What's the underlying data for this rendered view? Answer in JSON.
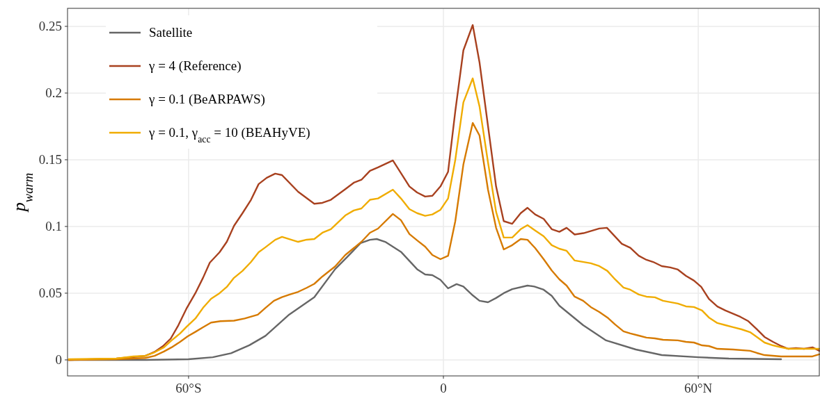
{
  "chart_data": {
    "type": "line",
    "ylabel": "p$_{warm}$",
    "xlim": [
      -88.5,
      88.5
    ],
    "ylim": [
      -0.012,
      0.2635
    ],
    "xticks": [
      {
        "value": -60,
        "label": "60°S"
      },
      0,
      {
        "value": 60,
        "label": "60°N"
      }
    ],
    "yticks": [
      0,
      0.05,
      0.1,
      0.15,
      0.2,
      0.25
    ],
    "grid": true,
    "legend": "top left",
    "line_style": "solid",
    "marker": "none",
    "series": [
      {
        "name": "Satellite",
        "color": "#666666",
        "x": [
          -88.2,
          -70,
          -60,
          -54.3,
          -50,
          -45.7,
          -41.9,
          -36.3,
          -30.4,
          -25.5,
          -22.7,
          -19.5,
          -17.3,
          -15.7,
          -13.7,
          -10,
          -6.2,
          -4.3,
          -2.6,
          -0.7,
          1.1,
          3.1,
          4.7,
          6.9,
          8.5,
          10.5,
          12.4,
          14.2,
          16.2,
          19.8,
          21.4,
          23.6,
          25.5,
          27.3,
          32.9,
          38.3,
          45.3,
          51.4,
          60,
          67.2,
          79.5
        ],
        "values": [
          0,
          0,
          0.0005,
          0.002,
          0.005,
          0.011,
          0.018,
          0.034,
          0.047,
          0.068,
          0.077,
          0.0875,
          0.09,
          0.0906,
          0.0885,
          0.081,
          0.068,
          0.064,
          0.0635,
          0.06,
          0.0536,
          0.0568,
          0.055,
          0.0484,
          0.0443,
          0.0432,
          0.0464,
          0.05,
          0.053,
          0.0557,
          0.055,
          0.0526,
          0.048,
          0.0406,
          0.026,
          0.0146,
          0.0078,
          0.0036,
          0.002,
          0.001,
          0.0005
        ]
      },
      {
        "name": "γ = 4 (Reference)",
        "color": "#a8411f",
        "x": [
          -88.2,
          -77,
          -70.2,
          -68,
          -66,
          -64.2,
          -62.4,
          -60.4,
          -58.4,
          -56.6,
          -55,
          -52.7,
          -51,
          -49.3,
          -47.3,
          -45.3,
          -43.5,
          -41.6,
          -39.6,
          -38,
          -34.2,
          -30.4,
          -28.5,
          -26.5,
          -23.1,
          -21.1,
          -19.3,
          -17.3,
          -15.4,
          -11.9,
          -10,
          -8,
          -6.2,
          -4.3,
          -2.6,
          -0.7,
          1.1,
          2.8,
          4.7,
          6.9,
          8.5,
          12.4,
          14.2,
          16.2,
          18.2,
          19.8,
          21.6,
          23.6,
          25.5,
          27.3,
          29,
          30.9,
          33,
          36.7,
          38.5,
          42,
          44,
          46,
          47.8,
          49.4,
          51.4,
          53.4,
          55.2,
          57.1,
          59,
          60.7,
          62.5,
          64.5,
          66.4,
          69.9,
          71.8,
          73.8,
          75.6,
          77.6,
          79.5,
          81.2,
          83,
          84.9,
          86.9,
          88.5
        ],
        "values": [
          0,
          0.001,
          0.003,
          0.006,
          0.0104,
          0.016,
          0.026,
          0.039,
          0.05,
          0.0615,
          0.0729,
          0.0807,
          0.0885,
          0.1005,
          0.11,
          0.12,
          0.1318,
          0.1365,
          0.1396,
          0.1385,
          0.126,
          0.117,
          0.1177,
          0.12,
          0.128,
          0.1328,
          0.135,
          0.1417,
          0.1443,
          0.1495,
          0.14,
          0.13,
          0.1255,
          0.1224,
          0.123,
          0.13,
          0.141,
          0.1865,
          0.232,
          0.251,
          0.223,
          0.13,
          0.104,
          0.102,
          0.11,
          0.114,
          0.109,
          0.1057,
          0.098,
          0.096,
          0.099,
          0.094,
          0.095,
          0.0985,
          0.099,
          0.087,
          0.084,
          0.078,
          0.075,
          0.0734,
          0.0703,
          0.0693,
          0.0677,
          0.063,
          0.0594,
          0.0547,
          0.0458,
          0.04,
          0.037,
          0.0323,
          0.029,
          0.0229,
          0.0172,
          0.0135,
          0.0104,
          0.0083,
          0.0089,
          0.0083,
          0.0094,
          0.0068
        ]
      },
      {
        "name": "γ = 0.1 (BeARPAWS)",
        "color": "#d67a00",
        "x": [
          -88.2,
          -77,
          -70.2,
          -68,
          -65.8,
          -64,
          -62,
          -60.2,
          -58.4,
          -56.6,
          -54.7,
          -52.5,
          -49.3,
          -46.8,
          -43.7,
          -41.9,
          -39.9,
          -38,
          -36.2,
          -34.2,
          -32.2,
          -30.4,
          -28.5,
          -25.5,
          -23.1,
          -21.1,
          -19.3,
          -17.3,
          -15.4,
          -11.9,
          -10,
          -8,
          -6.2,
          -4.3,
          -2.6,
          -0.7,
          1.1,
          2.8,
          4.7,
          6.9,
          8.5,
          10.5,
          12.4,
          14.2,
          16.2,
          18.2,
          19.8,
          21.6,
          23.6,
          25.5,
          27.3,
          29,
          30.9,
          32.9,
          34.7,
          36.7,
          38.6,
          40.4,
          42.4,
          44,
          46,
          47.8,
          49.8,
          51.7,
          55.2,
          57.1,
          59,
          60.9,
          62.5,
          64.5,
          68.2,
          72.2,
          73.8,
          75.6,
          79.5,
          86.9,
          88.5
        ],
        "values": [
          0,
          0.0005,
          0.0014,
          0.003,
          0.0063,
          0.0094,
          0.0135,
          0.0177,
          0.021,
          0.0245,
          0.028,
          0.029,
          0.0294,
          0.031,
          0.0339,
          0.039,
          0.0443,
          0.047,
          0.049,
          0.051,
          0.054,
          0.057,
          0.0625,
          0.07,
          0.0786,
          0.0838,
          0.0885,
          0.0953,
          0.0984,
          0.1094,
          0.1047,
          0.0943,
          0.0896,
          0.0849,
          0.0786,
          0.0755,
          0.078,
          0.104,
          0.1464,
          0.1776,
          0.1682,
          0.1276,
          0.099,
          0.0828,
          0.086,
          0.0906,
          0.09,
          0.0838,
          0.0755,
          0.067,
          0.0604,
          0.0557,
          0.0474,
          0.0443,
          0.0396,
          0.0359,
          0.0318,
          0.0266,
          0.0214,
          0.0198,
          0.0182,
          0.0167,
          0.0161,
          0.0151,
          0.0146,
          0.0135,
          0.013,
          0.0109,
          0.0104,
          0.0083,
          0.0078,
          0.0068,
          0.0052,
          0.0036,
          0.0026,
          0.0026,
          0.0042
        ]
      },
      {
        "name": "γ = 0.1, γ$_{acc}$ = 10 (BEAHyVE)",
        "color": "#f0ac00",
        "x": [
          -88.2,
          -77,
          -73,
          -70.2,
          -68,
          -65.8,
          -64,
          -62,
          -60.4,
          -58.4,
          -56.6,
          -54.7,
          -52.7,
          -51,
          -49.3,
          -47.3,
          -45.3,
          -43.5,
          -41.9,
          -39.6,
          -38,
          -34.2,
          -32.2,
          -30.4,
          -28.5,
          -26.5,
          -23.1,
          -21.1,
          -19.3,
          -17.3,
          -15.4,
          -11.9,
          -10,
          -8,
          -6.2,
          -4.3,
          -2.6,
          -0.7,
          1.1,
          2.8,
          4.7,
          6.9,
          8.5,
          10.5,
          12.4,
          14.2,
          16.2,
          18.2,
          19.8,
          21.6,
          23.6,
          25.5,
          27.3,
          29,
          30.9,
          34.7,
          36.7,
          38.6,
          40.4,
          42.4,
          44,
          46,
          47.8,
          49.8,
          51.7,
          55.2,
          57.1,
          59,
          60.9,
          62.5,
          64.5,
          66.4,
          68.2,
          70.2,
          72.2,
          73.8,
          75.6,
          77.6,
          79.5,
          81.3,
          84.9,
          88.5
        ],
        "values": [
          0.0005,
          0.001,
          0.0026,
          0.003,
          0.0057,
          0.0094,
          0.0146,
          0.0198,
          0.025,
          0.031,
          0.039,
          0.0458,
          0.05,
          0.0547,
          0.0615,
          0.0667,
          0.0734,
          0.0807,
          0.0844,
          0.09,
          0.0922,
          0.0885,
          0.0901,
          0.0906,
          0.0953,
          0.098,
          0.1083,
          0.112,
          0.1135,
          0.12,
          0.121,
          0.1276,
          0.121,
          0.113,
          0.11,
          0.108,
          0.109,
          0.1125,
          0.121,
          0.15,
          0.193,
          0.211,
          0.19,
          0.148,
          0.111,
          0.0917,
          0.0917,
          0.098,
          0.101,
          0.097,
          0.0927,
          0.086,
          0.0833,
          0.0818,
          0.0745,
          0.0724,
          0.0703,
          0.0667,
          0.0604,
          0.0542,
          0.0526,
          0.049,
          0.0474,
          0.0469,
          0.0443,
          0.0422,
          0.0401,
          0.0396,
          0.037,
          0.0318,
          0.0276,
          0.026,
          0.0245,
          0.0229,
          0.0208,
          0.0172,
          0.013,
          0.0109,
          0.0094,
          0.0083,
          0.0083,
          0.0083
        ]
      }
    ]
  }
}
